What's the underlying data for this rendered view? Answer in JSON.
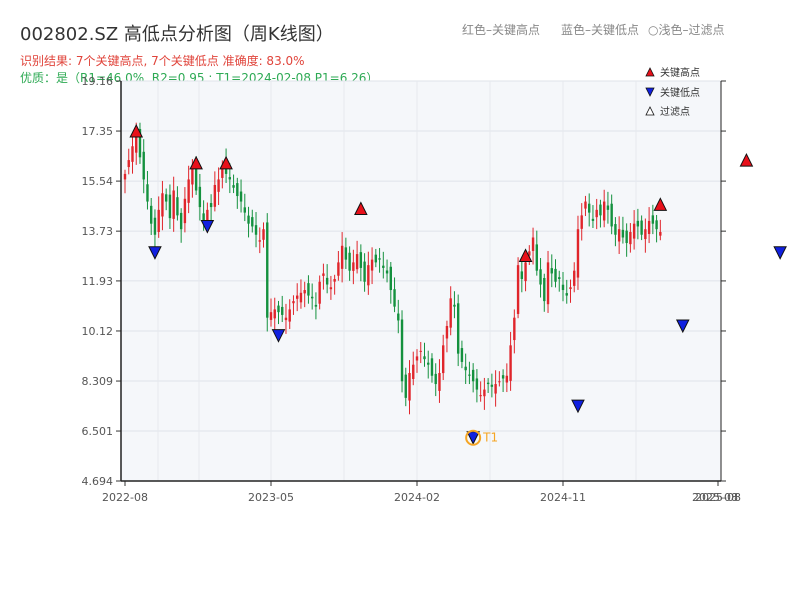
{
  "header": {
    "title": "002802.SZ 高低点分析图（周K线图）",
    "legend_red": "红色–关键高点",
    "legend_blue": "蓝色–关键低点",
    "legend_light": "浅色–过滤点",
    "result_line": "识别结果: 7个关键高点, 7个关键低点  准确度: 83.0%",
    "quality_line": "优质：是（R1=46.0%, R2=0.95 ; T1=2024-02-08 P1=6.26）"
  },
  "colors": {
    "up": "#e0252b",
    "down": "#14913e",
    "high_marker": "#e8101a",
    "low_marker": "#1020e0",
    "t1": "#f5a524",
    "plot_bg": "#f5f7fa"
  },
  "chart_data": {
    "type": "candlestick",
    "title": "002802.SZ 高低点分析图（周K线图）",
    "y_ticks": [
      "19.16",
      "17.35",
      "15.54",
      "13.73",
      "11.93",
      "10.12",
      "8.309",
      "6.501",
      "4.694"
    ],
    "ylim": [
      4.694,
      19.16
    ],
    "x_ticks": [
      "2022-08",
      "2023-05",
      "2024-02",
      "2024-11",
      "2025-08"
    ],
    "x_range": [
      "2022-08",
      "2025-08"
    ],
    "legend": {
      "position": "top-right",
      "entries": [
        "关键高点",
        "关键低点",
        "过滤点"
      ]
    },
    "series_close": [
      15.8,
      16.3,
      16.8,
      17.3,
      16.4,
      15.6,
      14.8,
      14.0,
      13.6,
      14.5,
      15.1,
      14.8,
      14.2,
      15.2,
      14.3,
      13.8,
      14.9,
      15.6,
      16.0,
      15.2,
      14.6,
      14.1,
      14.5,
      14.6,
      15.4,
      15.6,
      16.1,
      15.8,
      15.6,
      15.3,
      15.0,
      14.8,
      14.4,
      14.0,
      13.9,
      13.6,
      13.4,
      13.8,
      10.6,
      10.8,
      10.9,
      10.8,
      10.7,
      10.6,
      10.9,
      11.2,
      11.4,
      11.5,
      11.6,
      11.4,
      11.3,
      11.0,
      11.9,
      12.2,
      11.8,
      11.7,
      12.0,
      12.6,
      13.2,
      12.7,
      12.3,
      12.6,
      12.9,
      12.4,
      11.9,
      12.5,
      12.7,
      12.6,
      12.7,
      12.4,
      12.2,
      11.6,
      11.0,
      10.5,
      8.3,
      7.7,
      8.6,
      8.9,
      9.2,
      9.4,
      9.1,
      8.9,
      8.5,
      8.2,
      8.6,
      9.6,
      10.3,
      11.3,
      11.0,
      9.3,
      9.0,
      8.7,
      8.5,
      8.3,
      8.0,
      7.8,
      8.0,
      8.2,
      8.1,
      8.2,
      8.3,
      8.4,
      8.5,
      9.6,
      10.6,
      12.5,
      12.0,
      12.6,
      13.0,
      13.5,
      12.3,
      11.8,
      11.2,
      12.6,
      12.2,
      11.9,
      12.0,
      11.6,
      11.4,
      11.7,
      12.3,
      13.8,
      14.3,
      14.8,
      14.4,
      14.1,
      14.5,
      14.3,
      14.8,
      14.5,
      13.9,
      13.6,
      13.8,
      13.5,
      13.3,
      13.7,
      14.0,
      13.9,
      13.6,
      13.8,
      14.1,
      14.0,
      13.8,
      13.7
    ],
    "key_highs": [
      {
        "week": 3,
        "price": 17.35
      },
      {
        "week": 19,
        "price": 16.2
      },
      {
        "week": 27,
        "price": 16.2
      },
      {
        "week": 63,
        "price": 14.55
      },
      {
        "week": 107,
        "price": 12.85
      },
      {
        "week": 143,
        "price": 14.7
      },
      {
        "week": 166,
        "price": 16.3
      }
    ],
    "key_lows": [
      {
        "week": 8,
        "price": 12.95
      },
      {
        "week": 22,
        "price": 13.9
      },
      {
        "week": 41,
        "price": 9.95
      },
      {
        "week": 93,
        "price": 6.26
      },
      {
        "week": 121,
        "price": 7.4
      },
      {
        "week": 149,
        "price": 10.3
      },
      {
        "week": 175,
        "price": 12.95
      }
    ],
    "t1": {
      "week": 93,
      "price": 6.26,
      "label": "T1"
    }
  }
}
